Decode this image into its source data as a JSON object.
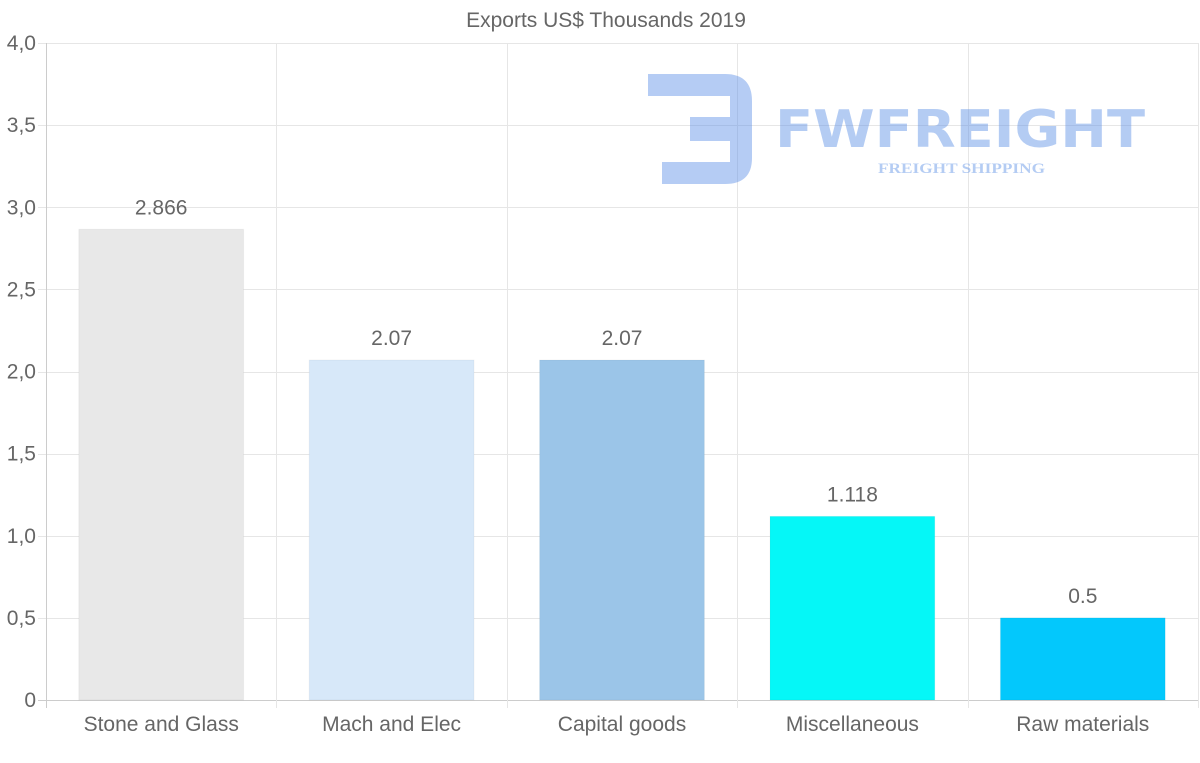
{
  "chart_data": {
    "type": "bar",
    "title": "Exports US$ Thousands 2019",
    "categories": [
      "Stone and Glass",
      "Mach and Elec",
      "Capital goods",
      "Miscellaneous",
      "Raw materials"
    ],
    "values": [
      2.866,
      2.07,
      2.07,
      1.118,
      0.5
    ],
    "value_labels": [
      "2.866",
      "2.07",
      "2.07",
      "1.118",
      "0.5"
    ],
    "bar_colors": [
      "#e8e8e8",
      "#d7e8f9",
      "#9bc5e8",
      "#05f7f7",
      "#03c8fc"
    ],
    "ylim": [
      0,
      4.0
    ],
    "yticks": [
      0,
      0.5,
      1.0,
      1.5,
      2.0,
      2.5,
      3.0,
      3.5,
      4.0
    ],
    "ytick_labels": [
      "0",
      "0,5",
      "1,0",
      "1,5",
      "2,0",
      "2,5",
      "3,0",
      "3,5",
      "4,0"
    ],
    "xlabel": "",
    "ylabel": "",
    "grid": true,
    "legend": false
  },
  "watermark": {
    "brand": "FWFREIGHT",
    "tagline": "FREIGHT SHIPPING",
    "color": "#5b8fe6"
  }
}
